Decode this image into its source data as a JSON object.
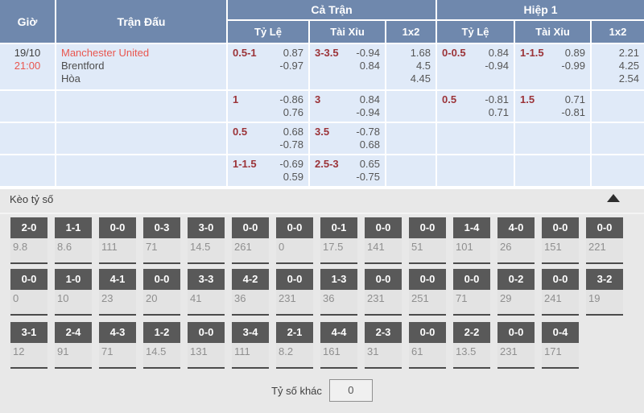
{
  "odds_table": {
    "columns": {
      "time": "Giờ",
      "match": "Trận Đấu",
      "full_match": "Cả Trận",
      "first_half": "Hiệp 1",
      "handicap": "Tỷ Lệ",
      "over_under": "Tài Xỉu",
      "one_x_two": "1x2"
    },
    "match": {
      "date": "19/10",
      "time": "21:00",
      "home": "Manchester United",
      "away": "Brentford",
      "draw": "Hòa"
    },
    "rows": [
      {
        "ft_hc": {
          "label": "0.5-1",
          "odds": [
            "0.87",
            "-0.97"
          ]
        },
        "ft_ou": {
          "label": "3-3.5",
          "odds": [
            "-0.94",
            "0.84"
          ]
        },
        "ft_1x2": [
          "1.68",
          "4.5",
          "4.45"
        ],
        "h1_hc": {
          "label": "0-0.5",
          "odds": [
            "0.84",
            "-0.94"
          ]
        },
        "h1_ou": {
          "label": "1-1.5",
          "odds": [
            "0.89",
            "-0.99"
          ]
        },
        "h1_1x2": [
          "2.21",
          "4.25",
          "2.54"
        ]
      },
      {
        "ft_hc": {
          "label": "1",
          "odds": [
            "-0.86",
            "0.76"
          ]
        },
        "ft_ou": {
          "label": "3",
          "odds": [
            "0.84",
            "-0.94"
          ]
        },
        "h1_hc": {
          "label": "0.5",
          "odds": [
            "-0.81",
            "0.71"
          ]
        },
        "h1_ou": {
          "label": "1.5",
          "odds": [
            "0.71",
            "-0.81"
          ]
        }
      },
      {
        "ft_hc": {
          "label": "0.5",
          "odds": [
            "0.68",
            "-0.78"
          ]
        },
        "ft_ou": {
          "label": "3.5",
          "odds": [
            "-0.78",
            "0.68"
          ]
        }
      },
      {
        "ft_hc": {
          "label": "1-1.5",
          "odds": [
            "-0.69",
            "0.59"
          ]
        },
        "ft_ou": {
          "label": "2.5-3",
          "odds": [
            "0.65",
            "-0.75"
          ]
        }
      }
    ]
  },
  "score_section": {
    "title": "Kèo tỷ số",
    "collapse_icon_name": "chevron-up-icon",
    "rows": [
      [
        {
          "score": "2-0",
          "odds": "9.8"
        },
        {
          "score": "1-1",
          "odds": "8.6"
        },
        {
          "score": "0-0",
          "odds": "111"
        },
        {
          "score": "0-3",
          "odds": "71"
        },
        {
          "score": "3-0",
          "odds": "14.5"
        },
        {
          "score": "0-0",
          "odds": "261"
        },
        {
          "score": "0-0",
          "odds": "0"
        },
        {
          "score": "0-1",
          "odds": "17.5"
        },
        {
          "score": "0-0",
          "odds": "141"
        },
        {
          "score": "0-0",
          "odds": "51"
        },
        {
          "score": "1-4",
          "odds": "101"
        },
        {
          "score": "4-0",
          "odds": "26"
        },
        {
          "score": "0-0",
          "odds": "151"
        },
        {
          "score": "0-0",
          "odds": "221"
        }
      ],
      [
        {
          "score": "0-0",
          "odds": "0"
        },
        {
          "score": "1-0",
          "odds": "10"
        },
        {
          "score": "4-1",
          "odds": "23"
        },
        {
          "score": "0-0",
          "odds": "20"
        },
        {
          "score": "3-3",
          "odds": "41"
        },
        {
          "score": "4-2",
          "odds": "36"
        },
        {
          "score": "0-0",
          "odds": "231"
        },
        {
          "score": "1-3",
          "odds": "36"
        },
        {
          "score": "0-0",
          "odds": "231"
        },
        {
          "score": "0-0",
          "odds": "251"
        },
        {
          "score": "0-0",
          "odds": "71"
        },
        {
          "score": "0-2",
          "odds": "29"
        },
        {
          "score": "0-0",
          "odds": "241"
        },
        {
          "score": "3-2",
          "odds": "19"
        }
      ],
      [
        {
          "score": "3-1",
          "odds": "12"
        },
        {
          "score": "2-4",
          "odds": "91"
        },
        {
          "score": "4-3",
          "odds": "71"
        },
        {
          "score": "1-2",
          "odds": "14.5"
        },
        {
          "score": "0-0",
          "odds": "131"
        },
        {
          "score": "3-4",
          "odds": "111"
        },
        {
          "score": "2-1",
          "odds": "8.2"
        },
        {
          "score": "4-4",
          "odds": "161"
        },
        {
          "score": "2-3",
          "odds": "31"
        },
        {
          "score": "0-0",
          "odds": "61"
        },
        {
          "score": "2-2",
          "odds": "13.5"
        },
        {
          "score": "0-0",
          "odds": "231"
        },
        {
          "score": "0-4",
          "odds": "171"
        }
      ]
    ],
    "other_score_label": "Tỷ số khác",
    "other_score_value": "0"
  },
  "colors": {
    "header_blue": "#6f88ad",
    "row_blue": "#e0eaf8",
    "accent_red": "#e9564f",
    "handicap_maroon": "#9b3338",
    "score_header_gray": "#595959",
    "section_gray": "#e8e8e8"
  }
}
